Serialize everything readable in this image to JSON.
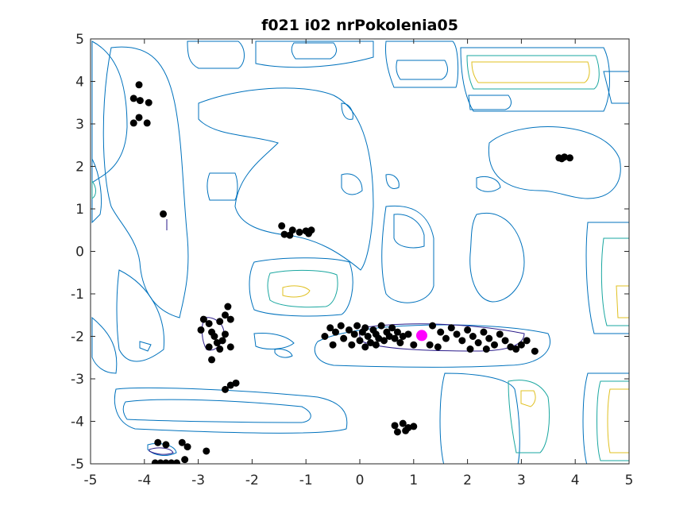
{
  "chart_data": {
    "type": "scatter",
    "title": "f021 i02 nrPokolenia05",
    "xlabel": "",
    "ylabel": "",
    "xlim": [
      -5,
      5
    ],
    "ylim": [
      -5,
      5
    ],
    "x_ticks": [
      -5,
      -4,
      -3,
      -2,
      -1,
      0,
      1,
      2,
      3,
      4,
      5
    ],
    "y_ticks": [
      -5,
      -4,
      -3,
      -2,
      -1,
      0,
      1,
      2,
      3,
      4,
      5
    ],
    "x_tick_labels": [
      "-5",
      "-4",
      "-3",
      "-2",
      "-1",
      "0",
      "1",
      "2",
      "3",
      "4",
      "5"
    ],
    "y_tick_labels": [
      "-5",
      "-4",
      "-3",
      "-2",
      "-1",
      "0",
      "1",
      "2",
      "3",
      "4",
      "5"
    ],
    "grid": false,
    "background": "contour plot of objective function",
    "colors": {
      "population": "#000000",
      "best": "#ff00ff",
      "contour_low": "#0072bd",
      "contour_mid": "#1aa7a0",
      "contour_high": "#e0c020",
      "contour_dark": "#2a1a8a"
    },
    "best_point": {
      "x": 1.15,
      "y": -1.98
    },
    "population": [
      {
        "x": -4.1,
        "y": 3.92
      },
      {
        "x": -4.2,
        "y": 3.6
      },
      {
        "x": -4.08,
        "y": 3.55
      },
      {
        "x": -3.92,
        "y": 3.5
      },
      {
        "x": -4.1,
        "y": 3.15
      },
      {
        "x": -4.2,
        "y": 3.02
      },
      {
        "x": -3.95,
        "y": 3.02
      },
      {
        "x": -3.65,
        "y": 0.88
      },
      {
        "x": -1.45,
        "y": 0.6
      },
      {
        "x": -1.4,
        "y": 0.4
      },
      {
        "x": -1.25,
        "y": 0.5
      },
      {
        "x": -1.12,
        "y": 0.45
      },
      {
        "x": -1.0,
        "y": 0.48
      },
      {
        "x": -0.9,
        "y": 0.5
      },
      {
        "x": -0.95,
        "y": 0.42
      },
      {
        "x": -1.3,
        "y": 0.38
      },
      {
        "x": 3.7,
        "y": 2.2
      },
      {
        "x": 3.8,
        "y": 2.22
      },
      {
        "x": 3.9,
        "y": 2.2
      },
      {
        "x": 3.75,
        "y": 2.18
      },
      {
        "x": -2.9,
        "y": -1.6
      },
      {
        "x": -2.8,
        "y": -1.7
      },
      {
        "x": -2.6,
        "y": -1.65
      },
      {
        "x": -2.5,
        "y": -1.5
      },
      {
        "x": -2.45,
        "y": -1.3
      },
      {
        "x": -2.4,
        "y": -1.6
      },
      {
        "x": -2.95,
        "y": -1.85
      },
      {
        "x": -2.75,
        "y": -1.9
      },
      {
        "x": -2.7,
        "y": -2.0
      },
      {
        "x": -2.65,
        "y": -2.15
      },
      {
        "x": -2.55,
        "y": -2.1
      },
      {
        "x": -2.8,
        "y": -2.25
      },
      {
        "x": -2.6,
        "y": -2.3
      },
      {
        "x": -2.4,
        "y": -2.25
      },
      {
        "x": -2.5,
        "y": -1.95
      },
      {
        "x": -2.75,
        "y": -2.55
      },
      {
        "x": -2.5,
        "y": -3.25
      },
      {
        "x": -2.4,
        "y": -3.15
      },
      {
        "x": -2.3,
        "y": -3.1
      },
      {
        "x": -0.65,
        "y": -2.0
      },
      {
        "x": -0.55,
        "y": -1.8
      },
      {
        "x": -0.45,
        "y": -1.9
      },
      {
        "x": -0.35,
        "y": -1.75
      },
      {
        "x": -0.3,
        "y": -2.05
      },
      {
        "x": -0.2,
        "y": -1.85
      },
      {
        "x": -0.1,
        "y": -1.95
      },
      {
        "x": -0.05,
        "y": -1.75
      },
      {
        "x": 0.0,
        "y": -2.1
      },
      {
        "x": 0.05,
        "y": -1.9
      },
      {
        "x": 0.1,
        "y": -1.8
      },
      {
        "x": 0.15,
        "y": -2.0
      },
      {
        "x": 0.2,
        "y": -2.15
      },
      {
        "x": 0.25,
        "y": -1.85
      },
      {
        "x": 0.3,
        "y": -1.95
      },
      {
        "x": 0.35,
        "y": -2.05
      },
      {
        "x": 0.4,
        "y": -1.75
      },
      {
        "x": 0.45,
        "y": -2.1
      },
      {
        "x": 0.5,
        "y": -1.9
      },
      {
        "x": 0.55,
        "y": -2.0
      },
      {
        "x": 0.6,
        "y": -1.8
      },
      {
        "x": 0.7,
        "y": -1.9
      },
      {
        "x": 0.75,
        "y": -2.15
      },
      {
        "x": 0.8,
        "y": -2.0
      },
      {
        "x": 0.9,
        "y": -1.95
      },
      {
        "x": 1.0,
        "y": -2.2
      },
      {
        "x": -0.15,
        "y": -2.2
      },
      {
        "x": 0.1,
        "y": -2.25
      },
      {
        "x": 0.3,
        "y": -2.2
      },
      {
        "x": -0.5,
        "y": -2.2
      },
      {
        "x": 0.65,
        "y": -2.05
      },
      {
        "x": 1.35,
        "y": -1.75
      },
      {
        "x": 1.5,
        "y": -1.9
      },
      {
        "x": 1.6,
        "y": -2.05
      },
      {
        "x": 1.7,
        "y": -1.8
      },
      {
        "x": 1.8,
        "y": -1.95
      },
      {
        "x": 1.9,
        "y": -2.1
      },
      {
        "x": 2.0,
        "y": -1.85
      },
      {
        "x": 2.1,
        "y": -2.0
      },
      {
        "x": 2.2,
        "y": -2.15
      },
      {
        "x": 2.3,
        "y": -1.9
      },
      {
        "x": 2.4,
        "y": -2.05
      },
      {
        "x": 2.5,
        "y": -2.2
      },
      {
        "x": 2.6,
        "y": -1.95
      },
      {
        "x": 2.7,
        "y": -2.1
      },
      {
        "x": 2.8,
        "y": -2.25
      },
      {
        "x": 2.9,
        "y": -2.3
      },
      {
        "x": 3.0,
        "y": -2.2
      },
      {
        "x": 3.1,
        "y": -2.1
      },
      {
        "x": 3.25,
        "y": -2.35
      },
      {
        "x": 1.3,
        "y": -2.2
      },
      {
        "x": 1.45,
        "y": -2.25
      },
      {
        "x": 2.05,
        "y": -2.3
      },
      {
        "x": 2.35,
        "y": -2.3
      },
      {
        "x": 0.65,
        "y": -4.1
      },
      {
        "x": 0.7,
        "y": -4.25
      },
      {
        "x": 0.8,
        "y": -4.05
      },
      {
        "x": 0.9,
        "y": -4.15
      },
      {
        "x": 1.0,
        "y": -4.12
      },
      {
        "x": 0.85,
        "y": -4.22
      },
      {
        "x": -3.75,
        "y": -4.5
      },
      {
        "x": -3.6,
        "y": -4.55
      },
      {
        "x": -3.3,
        "y": -4.5
      },
      {
        "x": -3.2,
        "y": -4.6
      },
      {
        "x": -2.85,
        "y": -4.7
      },
      {
        "x": -3.25,
        "y": -4.9
      },
      {
        "x": -3.8,
        "y": -4.98
      },
      {
        "x": -3.7,
        "y": -4.98
      },
      {
        "x": -3.6,
        "y": -4.98
      },
      {
        "x": -3.5,
        "y": -4.98
      },
      {
        "x": -3.4,
        "y": -4.98
      }
    ]
  }
}
